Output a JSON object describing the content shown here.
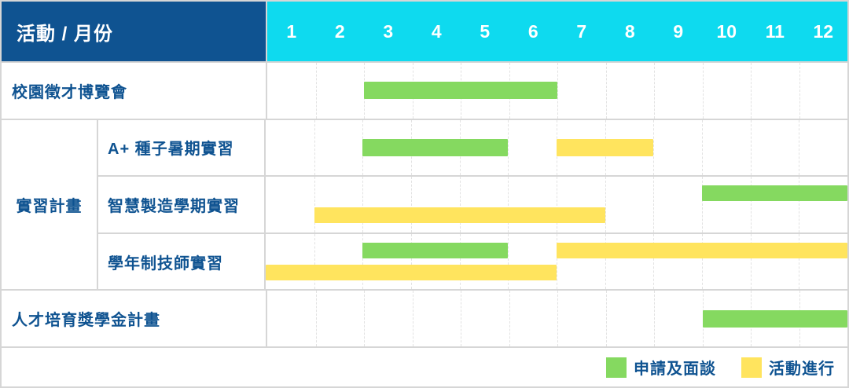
{
  "colors": {
    "header_bg": "#0F5391",
    "months_bg": "#0EDAEF",
    "green": "#85D960",
    "yellow": "#FFE45E",
    "text_blue": "#0F5391",
    "border": "#D6D6D6",
    "grid": "#E2E2E2"
  },
  "header": {
    "corner_label": "活動 / 月份",
    "months": [
      "1",
      "2",
      "3",
      "4",
      "5",
      "6",
      "7",
      "8",
      "9",
      "10",
      "11",
      "12"
    ]
  },
  "chart_data": {
    "type": "gantt",
    "unit": "month",
    "axis": {
      "min": 1,
      "max": 12
    },
    "grid": "dashed-vertical-per-month",
    "rows": [
      {
        "group": "",
        "label": "校園徵才博覽會",
        "bars": [
          {
            "type": "application",
            "start": 3,
            "end": 6,
            "lane": "center"
          }
        ]
      },
      {
        "group": "實習計畫",
        "label": "A+ 種子暑期實習",
        "bars": [
          {
            "type": "application",
            "start": 3,
            "end": 5,
            "lane": "center"
          },
          {
            "type": "activity",
            "start": 7,
            "end": 8,
            "lane": "center"
          }
        ]
      },
      {
        "group": "實習計畫",
        "label": "智慧製造學期實習",
        "bars": [
          {
            "type": "application",
            "start": 10,
            "end": 12,
            "lane": "top"
          },
          {
            "type": "activity",
            "start": 2,
            "end": 7,
            "lane": "bottom"
          }
        ]
      },
      {
        "group": "實習計畫",
        "label": "學年制技師實習",
        "bars": [
          {
            "type": "application",
            "start": 3,
            "end": 5,
            "lane": "top"
          },
          {
            "type": "activity",
            "start": 7,
            "end": 12,
            "lane": "top"
          },
          {
            "type": "activity",
            "start": 1,
            "end": 6,
            "lane": "bottom"
          }
        ]
      },
      {
        "group": "",
        "label": "人才培育獎學金計畫",
        "bars": [
          {
            "type": "application",
            "start": 10,
            "end": 12,
            "lane": "center"
          }
        ]
      }
    ]
  },
  "legend": [
    {
      "type": "application",
      "label": "申請及面談",
      "color": "#85D960"
    },
    {
      "type": "activity",
      "label": "活動進行",
      "color": "#FFE45E"
    }
  ]
}
